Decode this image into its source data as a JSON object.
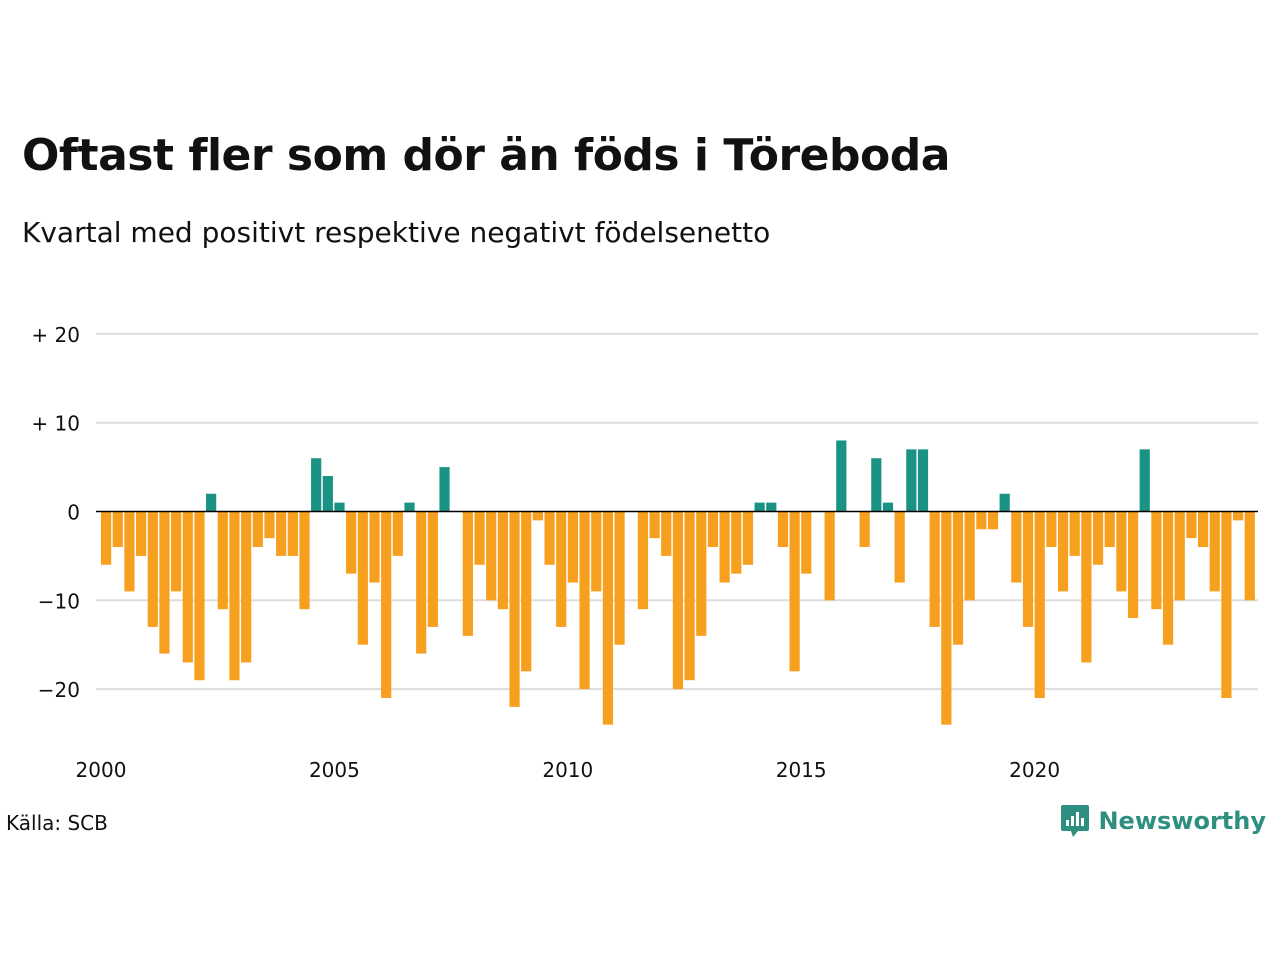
{
  "title": "Oftast fler som dör än föds i Töreboda",
  "subtitle": "Kvartal med positivt respektive negativt födelsenetto",
  "source": "Källa: SCB",
  "brand": {
    "name": "Newsworthy",
    "icon": "newsworthy-logo-icon"
  },
  "colors": {
    "positive": "#1a9384",
    "negative": "#f7a020",
    "grid": "#dddddd",
    "zero": "#000000"
  },
  "chart_data": {
    "type": "bar",
    "x_start": "2000 Q1",
    "x_tick_labels": [
      "2000",
      "2005",
      "2010",
      "2015",
      "2020"
    ],
    "y_tick_values": [
      20,
      10,
      0,
      -10,
      -20
    ],
    "y_tick_labels": [
      "+ 20",
      "+ 10",
      "0",
      "−10",
      "−20"
    ],
    "ylim": [
      -25,
      20
    ],
    "grid": true,
    "values": [
      -6,
      -4,
      -9,
      -5,
      -13,
      -16,
      -9,
      -17,
      -19,
      2,
      -11,
      -19,
      -17,
      -4,
      -3,
      -5,
      -5,
      -11,
      6,
      4,
      1,
      -7,
      -15,
      -8,
      -21,
      -5,
      1,
      -16,
      -13,
      5,
      0,
      -14,
      -6,
      -10,
      -11,
      -22,
      -18,
      -1,
      -6,
      -13,
      -8,
      -20,
      -9,
      -24,
      -15,
      0,
      -11,
      -3,
      -5,
      -20,
      -19,
      -14,
      -4,
      -8,
      -7,
      -6,
      1,
      1,
      -4,
      -18,
      -7,
      0,
      -10,
      8,
      0,
      -4,
      6,
      1,
      -8,
      7,
      7,
      -13,
      -24,
      -15,
      -10,
      -2,
      -2,
      2,
      -8,
      -13,
      -21,
      -4,
      -9,
      -5,
      -17,
      -6,
      -4,
      -9,
      -12,
      7,
      -11,
      -15,
      -10,
      -3,
      -4,
      -9,
      -21,
      -1,
      -10
    ]
  }
}
